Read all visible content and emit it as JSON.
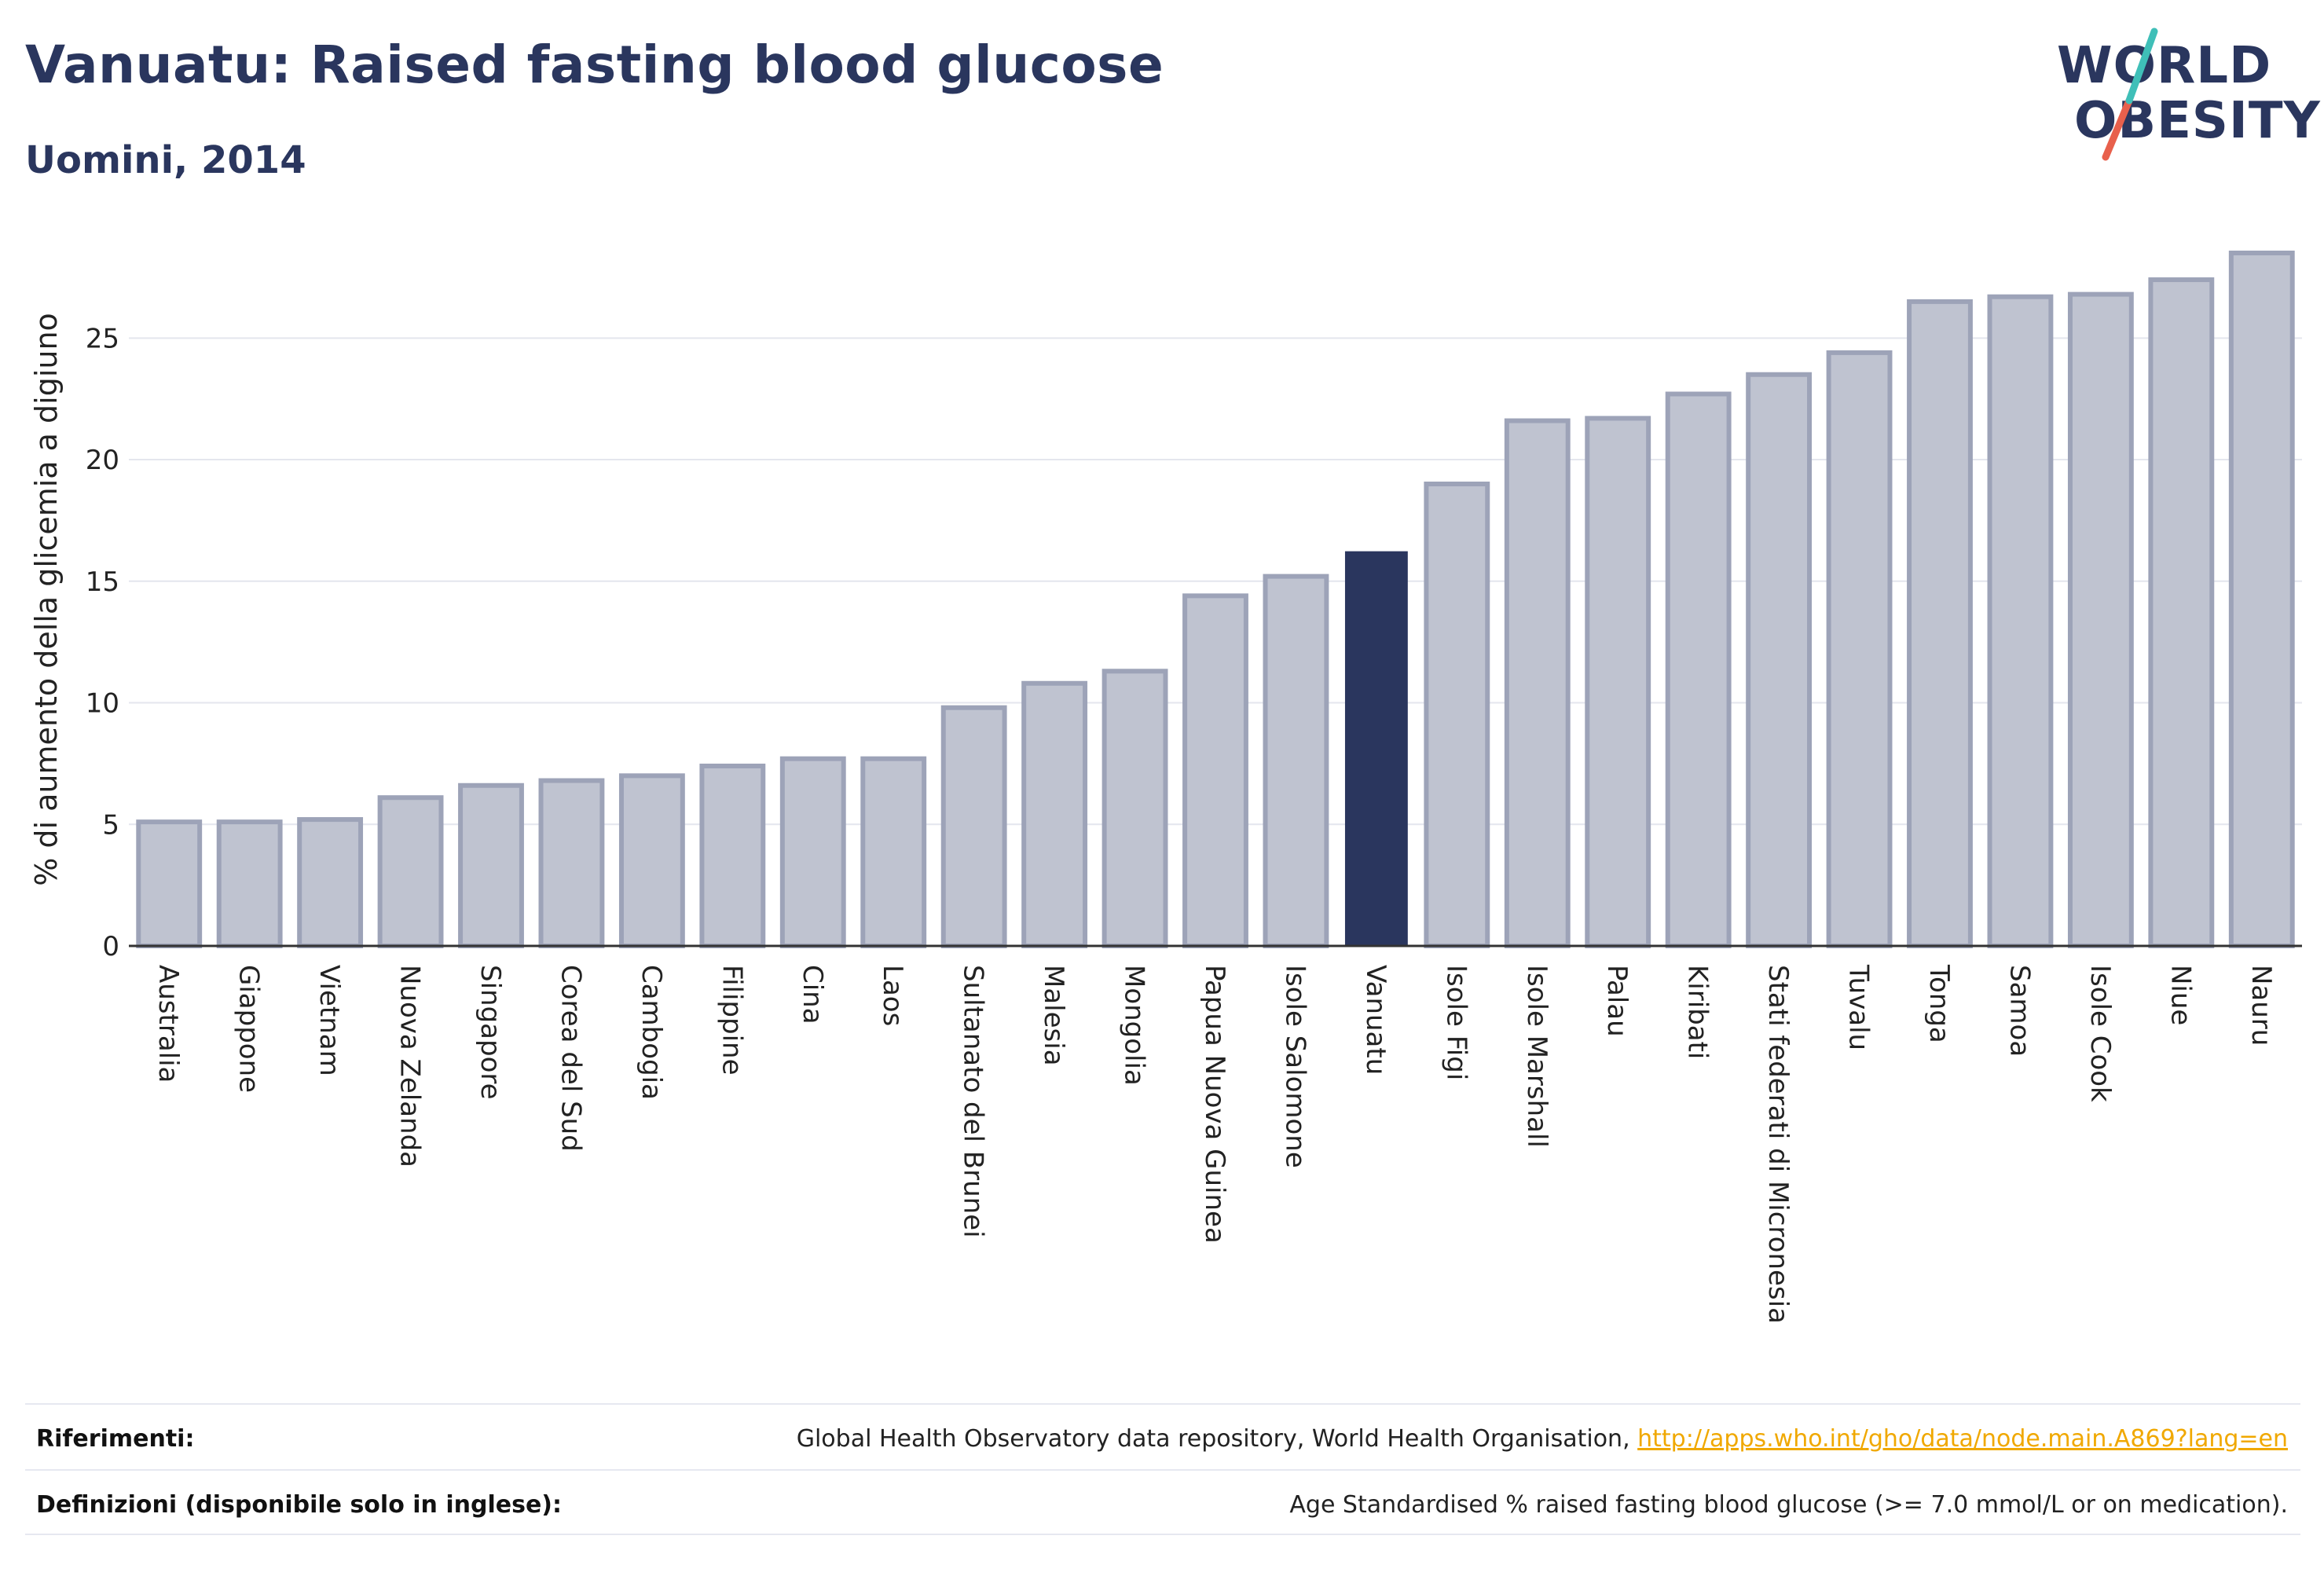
{
  "header": {
    "title": "Vanuatu: Raised fasting blood glucose",
    "subtitle": "Uomini, 2014"
  },
  "logo": {
    "line1": "WORLD",
    "line2": "OBESITY",
    "accent_colors": [
      "#3fbfb8",
      "#e8604c"
    ]
  },
  "chart_data": {
    "type": "bar",
    "title": "Vanuatu: Raised fasting blood glucose",
    "subtitle": "Uomini, 2014",
    "ylabel": "% di aumento della glicemia a digiuno",
    "xlabel": "",
    "ylim": [
      0,
      28.5
    ],
    "yticks": [
      0,
      5,
      10,
      15,
      20,
      25
    ],
    "grid": true,
    "highlight": "Vanuatu",
    "colors": {
      "bar": "#bfc3d0",
      "bar_edge": "#9da3b8",
      "highlight": "#2a365e"
    },
    "categories": [
      "Australia",
      "Giappone",
      "Vietnam",
      "Nuova Zelanda",
      "Singapore",
      "Corea del Sud",
      "Cambogia",
      "Filippine",
      "Cina",
      "Laos",
      "Sultanato del Brunei",
      "Malesia",
      "Mongolia",
      "Papua Nuova Guinea",
      "Isole Salomone",
      "Vanuatu",
      "Isole Figi",
      "Isole Marshall",
      "Palau",
      "Kiribati",
      "Stati federati di Micronesia",
      "Tuvalu",
      "Tonga",
      "Samoa",
      "Isole Cook",
      "Niue",
      "Nauru"
    ],
    "values": [
      5.1,
      5.1,
      5.2,
      6.1,
      6.6,
      6.8,
      7.0,
      7.4,
      7.7,
      7.7,
      9.8,
      10.8,
      11.3,
      14.4,
      15.2,
      16.2,
      19.0,
      21.6,
      21.7,
      22.7,
      23.5,
      24.4,
      26.5,
      26.7,
      26.8,
      27.4,
      28.5
    ]
  },
  "footer": {
    "references_label": "Riferimenti:",
    "references_text": "Global Health Observatory data repository, World Health Organisation, ",
    "references_link": "http://apps.who.int/gho/data/node.main.A869?lang=en",
    "definitions_label": "Definizioni (disponibile solo in inglese):",
    "definitions_text": "Age Standardised % raised fasting blood glucose (>= 7.0 mmol/L or on medication)."
  }
}
